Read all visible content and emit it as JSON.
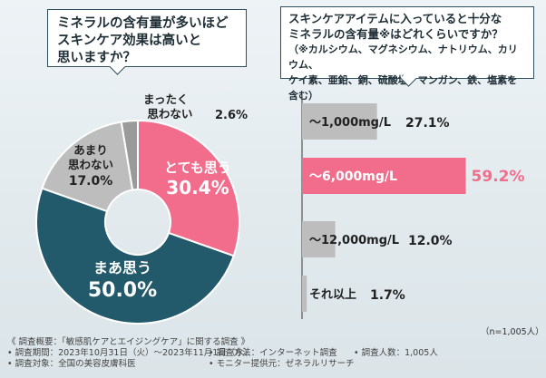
{
  "left_question": [
    "ミネラルの含有量が多いほど",
    "スキンケア効果は高いと",
    "思いますか？"
  ],
  "right_question": [
    "スキンケアアイテムに入っていると十分な",
    "ミネラルの含有量※はどれくらいですか？",
    "（※カルシウム、マグネシウム、ナトリウム、カリウム、",
    "ケイ素、亜鉛、銅、硫酸塩、マンガン、鉄、塩素を含む）"
  ],
  "n_label": "（n=1,005人）",
  "footer": {
    "summary": "《 調査概要：「敏感肌ケアとエイジングケア」に関する調査 》",
    "period": "• 調査期間：2023年10月31日（火）～2023年11月1日（水）",
    "target": "• 調査対象：全国の美容皮膚科医",
    "method": "• 調査方法：インターネット調査",
    "count": "• 調査人数：1,005人",
    "provider": "• モニター提供元：ゼネラルリサーチ"
  },
  "colors": {
    "pink": "#f26d8c",
    "teal": "#225a6b",
    "gray": "#bdbdbd",
    "darkgray": "#9a9a9a"
  },
  "chart_data": [
    {
      "type": "pie",
      "title": "ミネラルの含有量が多いほどスキンケア効果は高いと思いますか？",
      "slices": [
        {
          "label": "とても思う",
          "value": 30.4,
          "value_label": "30.4%"
        },
        {
          "label": "まあ思う",
          "value": 50.0,
          "value_label": "50.0%"
        },
        {
          "label": "あまり思わない",
          "value": 17.0,
          "value_label": "17.0%"
        },
        {
          "label": "まったく思わない",
          "value": 2.6,
          "value_label": "2.6%"
        }
      ]
    },
    {
      "type": "bar",
      "title": "スキンケアアイテムに入っていると十分なミネラルの含有量はどれくらいですか？",
      "categories": [
        "～1,000mg/L",
        "～6,000mg/L",
        "～12,000mg/L",
        "それ以上"
      ],
      "values": [
        27.1,
        59.2,
        12.0,
        1.7
      ],
      "value_labels": [
        "27.1%",
        "59.2%",
        "12.0%",
        "1.7%"
      ]
    }
  ]
}
